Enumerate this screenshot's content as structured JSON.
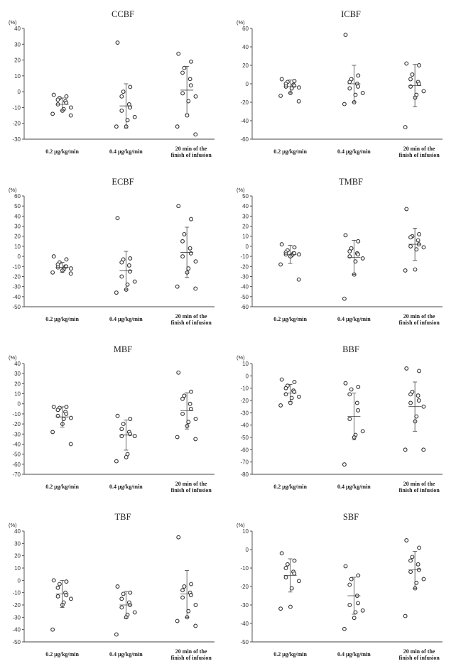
{
  "unit_label": "(%)",
  "colors": {
    "axis": "#444444",
    "marker_edge": "#333333",
    "marker_fill": "#ffffff",
    "text": "#222222"
  },
  "chart_data": [
    {
      "type": "scatter",
      "title": "CCBF",
      "ylabel": "(%)",
      "ylim": [
        -30,
        40
      ],
      "yticks": [
        40,
        30,
        20,
        10,
        0,
        -10,
        -20,
        -30
      ],
      "categories": [
        "0.2 μg/kg/min",
        "0.4 μg/kg/min",
        "20 min of the finish of infusion"
      ],
      "groups": [
        {
          "values": [
            -2,
            -3,
            -4,
            -5,
            -6,
            -7,
            -8,
            -10,
            -11,
            -12,
            -14,
            -15
          ],
          "mean": -8,
          "sd": 4
        },
        {
          "values": [
            31,
            3,
            0,
            -3,
            -8,
            -10,
            -12,
            -16,
            -18,
            -22,
            -22
          ],
          "mean": -9,
          "sd": 14
        },
        {
          "values": [
            24,
            19,
            15,
            12,
            8,
            4,
            -1,
            -3,
            -6,
            -15,
            -22,
            -27
          ],
          "mean": 1,
          "sd": 15
        }
      ]
    },
    {
      "type": "scatter",
      "title": "ICBF",
      "ylabel": "(%)",
      "ylim": [
        -60,
        60
      ],
      "yticks": [
        60,
        40,
        20,
        0,
        -20,
        -40,
        -60
      ],
      "categories": [
        "0.2 μg/kg/min",
        "0.4 μg/kg/min",
        "20 min of the finish of infusion"
      ],
      "groups": [
        {
          "values": [
            5,
            3,
            2,
            0,
            -1,
            -2,
            -3,
            -4,
            -5,
            -10,
            -13,
            -19
          ],
          "mean": -3,
          "sd": 7
        },
        {
          "values": [
            53,
            9,
            5,
            2,
            0,
            -3,
            -5,
            -10,
            -12,
            -20,
            -22
          ],
          "mean": 0,
          "sd": 20
        },
        {
          "values": [
            22,
            20,
            10,
            5,
            2,
            0,
            -3,
            -8,
            -12,
            -15,
            -47
          ],
          "mean": -2,
          "sd": 23
        }
      ]
    },
    {
      "type": "scatter",
      "title": "ECBF",
      "ylabel": "(%)",
      "ylim": [
        -50,
        60
      ],
      "yticks": [
        60,
        50,
        40,
        30,
        20,
        10,
        0,
        -10,
        -20,
        -30,
        -40,
        -50
      ],
      "categories": [
        "0.2 μg/kg/min",
        "0.4 μg/kg/min",
        "20 min of the finish of infusion"
      ],
      "groups": [
        {
          "values": [
            0,
            -3,
            -6,
            -8,
            -10,
            -10,
            -11,
            -12,
            -13,
            -14,
            -16,
            -17
          ],
          "mean": -11,
          "sd": 5
        },
        {
          "values": [
            38,
            -2,
            -3,
            -6,
            -9,
            -15,
            -20,
            -25,
            -28,
            -33,
            -36
          ],
          "mean": -14,
          "sd": 19
        },
        {
          "values": [
            50,
            37,
            22,
            15,
            8,
            3,
            0,
            -5,
            -12,
            -16,
            -30,
            -32
          ],
          "mean": 4,
          "sd": 25
        }
      ]
    },
    {
      "type": "scatter",
      "title": "TMBF",
      "ylabel": "(%)",
      "ylim": [
        -60,
        50
      ],
      "yticks": [
        50,
        40,
        30,
        20,
        10,
        0,
        -10,
        -20,
        -30,
        -40,
        -50,
        -60
      ],
      "categories": [
        "0.2 μg/kg/min",
        "0.4 μg/kg/min",
        "20 min of the finish of infusion"
      ],
      "groups": [
        {
          "values": [
            2,
            -1,
            -4,
            -6,
            -7,
            -7,
            -8,
            -8,
            -9,
            -10,
            -18,
            -33
          ],
          "mean": -8,
          "sd": 9
        },
        {
          "values": [
            11,
            5,
            -2,
            -5,
            -7,
            -8,
            -10,
            -12,
            -15,
            -28,
            -52
          ],
          "mean": -11,
          "sd": 17
        },
        {
          "values": [
            37,
            12,
            10,
            9,
            6,
            2,
            0,
            -1,
            -3,
            -23,
            -24
          ],
          "mean": 2,
          "sd": 16
        }
      ]
    },
    {
      "type": "scatter",
      "title": "MBF",
      "ylabel": "(%)",
      "ylim": [
        -70,
        40
      ],
      "yticks": [
        40,
        30,
        20,
        10,
        0,
        -10,
        -20,
        -30,
        -40,
        -50,
        -60,
        -70
      ],
      "categories": [
        "0.2 μg/kg/min",
        "0.4 μg/kg/min",
        "20 min of the finish of infusion"
      ],
      "groups": [
        {
          "values": [
            -3,
            -3,
            -4,
            -6,
            -8,
            -10,
            -12,
            -14,
            -15,
            -20,
            -28,
            -40
          ],
          "mean": -13,
          "sd": 10
        },
        {
          "values": [
            -12,
            -15,
            -20,
            -25,
            -28,
            -30,
            -32,
            -32,
            -50,
            -53,
            -57
          ],
          "mean": -31,
          "sd": 15
        },
        {
          "values": [
            31,
            12,
            8,
            5,
            0,
            -5,
            -10,
            -15,
            -18,
            -22,
            -33,
            -35
          ],
          "mean": -7,
          "sd": 18
        }
      ]
    },
    {
      "type": "scatter",
      "title": "BBF",
      "ylabel": "(%)",
      "ylim": [
        -80,
        10
      ],
      "yticks": [
        10,
        0,
        -10,
        -20,
        -30,
        -40,
        -50,
        -60,
        -70,
        -80
      ],
      "categories": [
        "0.2 μg/kg/min",
        "0.4 μg/kg/min",
        "20 min of the finish of infusion"
      ],
      "groups": [
        {
          "values": [
            -3,
            -5,
            -8,
            -10,
            -12,
            -13,
            -15,
            -17,
            -18,
            -22,
            -24
          ],
          "mean": -14,
          "sd": 7
        },
        {
          "values": [
            -6,
            -9,
            -11,
            -15,
            -22,
            -28,
            -35,
            -45,
            -48,
            -50,
            -72
          ],
          "mean": -33,
          "sd": 19
        },
        {
          "values": [
            6,
            4,
            -13,
            -15,
            -16,
            -20,
            -22,
            -25,
            -33,
            -37,
            -60,
            -60
          ],
          "mean": -25,
          "sd": 20
        }
      ]
    },
    {
      "type": "scatter",
      "title": "TBF",
      "ylabel": "(%)",
      "ylim": [
        -50,
        40
      ],
      "yticks": [
        40,
        30,
        20,
        10,
        0,
        -10,
        -20,
        -30,
        -40,
        -50
      ],
      "categories": [
        "0.2 μg/kg/min",
        "0.4 μg/kg/min",
        "20 min of the finish of infusion"
      ],
      "groups": [
        {
          "values": [
            0,
            -1,
            -3,
            -6,
            -10,
            -12,
            -13,
            -15,
            -18,
            -20,
            -40
          ],
          "mean": -11,
          "sd": 11
        },
        {
          "values": [
            -5,
            -10,
            -11,
            -15,
            -18,
            -20,
            -22,
            -26,
            -28,
            -30,
            -44
          ],
          "mean": -20,
          "sd": 11
        },
        {
          "values": [
            35,
            -3,
            -5,
            -8,
            -10,
            -12,
            -14,
            -20,
            -25,
            -30,
            -33,
            -37
          ],
          "mean": -11,
          "sd": 19
        }
      ]
    },
    {
      "type": "scatter",
      "title": "SBF",
      "ylabel": "(%)",
      "ylim": [
        -50,
        10
      ],
      "yticks": [
        10,
        0,
        -10,
        -20,
        -30,
        -40,
        -50
      ],
      "categories": [
        "0.2 μg/kg/min",
        "0.4 μg/kg/min",
        "20 min of the finish of infusion"
      ],
      "groups": [
        {
          "values": [
            -2,
            -6,
            -8,
            -10,
            -12,
            -13,
            -15,
            -17,
            -21,
            -31,
            -32
          ],
          "mean": -14,
          "sd": 9
        },
        {
          "values": [
            -9,
            -14,
            -16,
            -19,
            -25,
            -29,
            -30,
            -33,
            -34,
            -37,
            -43
          ],
          "mean": -25,
          "sd": 10
        },
        {
          "values": [
            5,
            1,
            -4,
            -6,
            -8,
            -11,
            -12,
            -16,
            -18,
            -21,
            -36
          ],
          "mean": -11,
          "sd": 10
        }
      ]
    }
  ]
}
